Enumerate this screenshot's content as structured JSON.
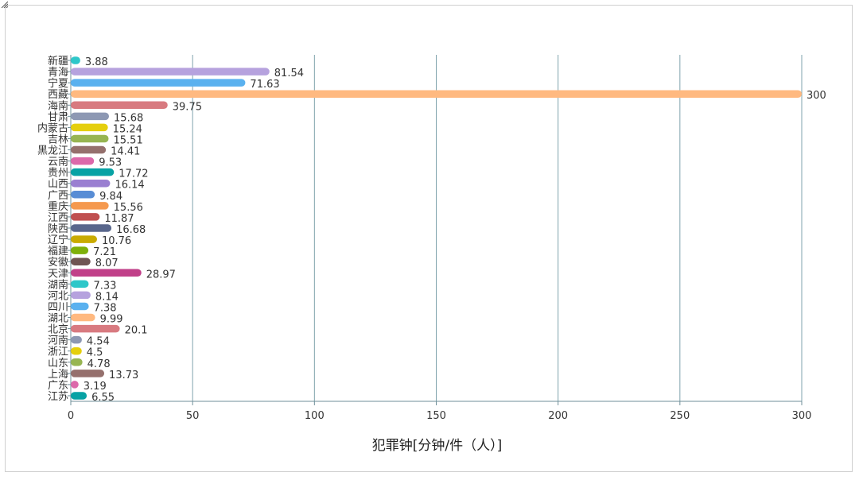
{
  "chart_data": {
    "type": "bar",
    "orientation": "horizontal",
    "xlabel": "犯罪钟[分钟/件（人）]",
    "xlim": [
      0,
      300
    ],
    "x_ticks": [
      0,
      50,
      100,
      150,
      200,
      250,
      300
    ],
    "grid": true,
    "categories": [
      "新疆",
      "青海",
      "宁夏",
      "西藏",
      "海南",
      "甘肃",
      "内蒙古",
      "吉林",
      "黑龙江",
      "云南",
      "贵州",
      "山西",
      "广西",
      "重庆",
      "江西",
      "陕西",
      "辽宁",
      "福建",
      "安徽",
      "天津",
      "湖南",
      "河北",
      "四川",
      "湖北",
      "北京",
      "河南",
      "浙江",
      "山东",
      "上海",
      "广东",
      "江苏"
    ],
    "values": [
      3.88,
      81.54,
      71.63,
      300,
      39.75,
      15.68,
      15.24,
      15.51,
      14.41,
      9.53,
      17.72,
      16.14,
      9.84,
      15.56,
      11.87,
      16.68,
      10.76,
      7.21,
      8.07,
      28.97,
      7.33,
      8.14,
      7.38,
      9.99,
      20.1,
      4.54,
      4.5,
      4.78,
      13.73,
      3.19,
      6.55
    ],
    "palette": [
      "#2ec7c9",
      "#b6a2de",
      "#5ab1ef",
      "#ffb980",
      "#d87a80",
      "#8d98b3",
      "#e5cf0d",
      "#97b552",
      "#95706d",
      "#dc69aa",
      "#07a2a4",
      "#9a7fd1",
      "#588dd5",
      "#f5994e",
      "#c05050",
      "#59678c",
      "#c9ab00",
      "#7eb00a",
      "#6f5553",
      "#c14089"
    ]
  }
}
